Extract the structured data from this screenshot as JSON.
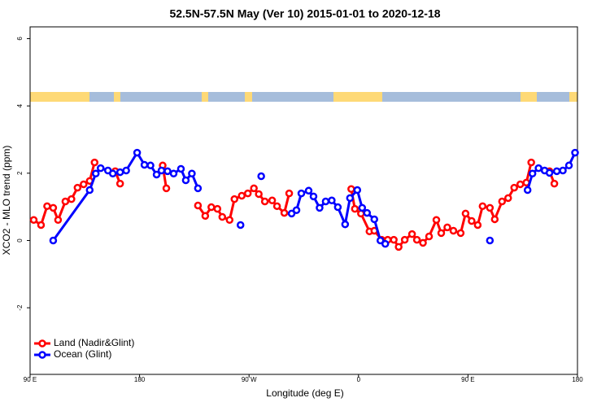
{
  "chart_data": {
    "type": "line",
    "title": "52.5N-57.5N May (Ver 10)   2015-01-01 to 2020-12-18",
    "x_label": "Longitude (deg E)",
    "y_label": "XCO2 - MLO trend (ppm)",
    "xlim": [
      90,
      540
    ],
    "ylim": [
      -3.98,
      6.35
    ],
    "xticks": [
      {
        "value": 90,
        "label": "90 E"
      },
      180,
      {
        "value": 270,
        "label": "90 W"
      },
      {
        "value": 360,
        "label": "0"
      },
      {
        "value": 450,
        "label": "90 E"
      },
      {
        "value": 540,
        "label": "180"
      }
    ],
    "yticks": [
      -2,
      0,
      2,
      4,
      6
    ],
    "legend": "bottom-left",
    "series": [
      {
        "name": "Land (Nadir&Glint)",
        "color": "#ff0000",
        "x": [
          93,
          99,
          104,
          109,
          113,
          119,
          124,
          129,
          134,
          139,
          143,
          null,
          160,
          164,
          null,
          199,
          202,
          null,
          228,
          234,
          239,
          244,
          248,
          254,
          258,
          264,
          269,
          274,
          278,
          283,
          289,
          293,
          299,
          303,
          null,
          354,
          357,
          362,
          369,
          373,
          379,
          384,
          389,
          393,
          398,
          404,
          408,
          413,
          418,
          424,
          428,
          433,
          438,
          444,
          448,
          453,
          458,
          462,
          468,
          472,
          478,
          483,
          488,
          493,
          498,
          502,
          null,
          517,
          521
        ],
        "values": [
          0.61,
          0.46,
          1.02,
          0.97,
          0.61,
          1.16,
          1.23,
          1.57,
          1.67,
          1.77,
          2.32,
          null,
          2.06,
          1.69,
          null,
          2.23,
          1.55,
          null,
          1.04,
          0.73,
          0.99,
          0.94,
          0.7,
          0.61,
          1.23,
          1.33,
          1.4,
          1.55,
          1.38,
          1.16,
          1.19,
          1.02,
          0.82,
          1.4,
          null,
          1.53,
          0.94,
          0.8,
          0.27,
          0.29,
          0.02,
          0.02,
          0.02,
          -0.19,
          0.02,
          0.19,
          0.02,
          -0.07,
          0.12,
          0.61,
          0.22,
          0.39,
          0.29,
          0.22,
          0.8,
          0.58,
          0.46,
          1.02,
          0.97,
          0.63,
          1.16,
          1.26,
          1.57,
          1.67,
          1.72,
          2.32,
          null,
          2.06,
          1.69
        ]
      },
      {
        "name": "Ocean (Glint)",
        "color": "#0000ff",
        "x": [
          109,
          139,
          144,
          148,
          154,
          158,
          164,
          169,
          178,
          184,
          189,
          194,
          198,
          203,
          208,
          214,
          218,
          223,
          228,
          null,
          263,
          null,
          280,
          null,
          305,
          309,
          313,
          319,
          323,
          328,
          333,
          338,
          343,
          349,
          353,
          359,
          363,
          367,
          373,
          378,
          382,
          null,
          468,
          null,
          499,
          503,
          508,
          513,
          517,
          523,
          528,
          533,
          538
        ],
        "values": [
          0.0,
          1.5,
          1.99,
          2.15,
          2.08,
          1.99,
          2.03,
          2.08,
          2.61,
          2.25,
          2.23,
          1.96,
          2.08,
          2.06,
          1.99,
          2.13,
          1.79,
          1.99,
          1.55,
          null,
          0.46,
          null,
          1.91,
          null,
          0.8,
          0.9,
          1.4,
          1.48,
          1.31,
          0.97,
          1.16,
          1.19,
          0.99,
          0.48,
          1.26,
          1.5,
          0.97,
          0.82,
          0.63,
          0.0,
          -0.1,
          null,
          0.0,
          null,
          1.5,
          1.99,
          2.15,
          2.08,
          2.01,
          2.06,
          2.08,
          2.23,
          2.61
        ]
      }
    ]
  }
}
